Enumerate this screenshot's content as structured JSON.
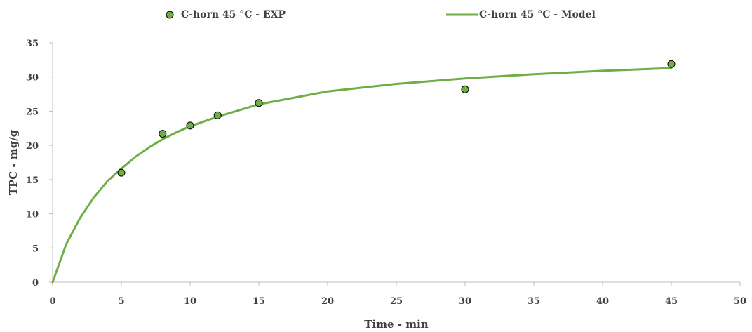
{
  "chart_data": {
    "type": "scatter",
    "xlabel": "Time - min",
    "ylabel": "TPC - mg/g",
    "xlim": [
      0,
      50
    ],
    "ylim": [
      0,
      35
    ],
    "x_ticks": [
      "0",
      "5",
      "10",
      "15",
      "20",
      "25",
      "30",
      "35",
      "40",
      "45",
      "50"
    ],
    "y_ticks": [
      "0",
      "5",
      "10",
      "15",
      "20",
      "25",
      "30",
      "35"
    ],
    "grid": false,
    "legend_position": "top",
    "series": [
      {
        "name": "C-horn 45 °C - EXP",
        "kind": "scatter",
        "color": "#70AD47",
        "x": [
          5,
          8,
          10,
          12,
          15,
          30,
          45
        ],
        "y": [
          16.0,
          21.7,
          22.9,
          24.4,
          26.2,
          28.2,
          31.9
        ]
      },
      {
        "name": "C-horn 45 °C - Model",
        "kind": "line",
        "color": "#70AD47",
        "x": [
          0,
          1,
          2,
          3,
          4,
          5,
          6,
          7,
          8,
          9,
          10,
          12,
          15,
          20,
          25,
          30,
          35,
          40,
          45
        ],
        "y": [
          0,
          5.6,
          9.4,
          12.4,
          14.8,
          16.6,
          18.3,
          19.7,
          20.9,
          21.9,
          22.8,
          24.2,
          26.0,
          27.9,
          29.0,
          29.8,
          30.4,
          30.9,
          31.3
        ]
      }
    ]
  }
}
